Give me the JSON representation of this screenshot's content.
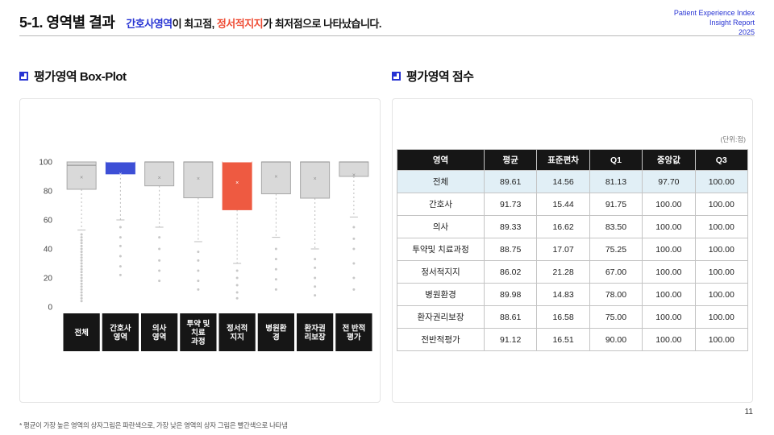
{
  "header": {
    "title": "5-1. 영역별 결과",
    "subtitle": [
      {
        "text": "간호사영역",
        "color": "#2733d3"
      },
      {
        "text": "이 최고점, ",
        "color": "#111111"
      },
      {
        "text": "정서적지지",
        "color": "#ee4b33"
      },
      {
        "text": "가 최저점으로 나타났습니다.",
        "color": "#111111"
      }
    ],
    "meta": [
      "Patient Experience Index",
      "Insight Report",
      "2025"
    ]
  },
  "sections": {
    "left_title": "평가영역 Box-Plot",
    "right_title": "평가영역 점수",
    "unit_label": "(단위:점)"
  },
  "palette": {
    "accent_blue": "#2733d3",
    "accent_red": "#ee4b33",
    "box_default": "#d9d9d9",
    "box_high": "#3d4fd6",
    "box_low": "#ee5a41",
    "table_header_bg": "#161616",
    "highlight_row_bg": "#e1eff6"
  },
  "table": {
    "headers": [
      "영역",
      "평균",
      "표준편차",
      "Q1",
      "중앙값",
      "Q3"
    ],
    "rows": [
      {
        "label": "전체",
        "values": [
          "89.61",
          "14.56",
          "81.13",
          "97.70",
          "100.00"
        ],
        "highlight": true
      },
      {
        "label": "간호사",
        "values": [
          "91.73",
          "15.44",
          "91.75",
          "100.00",
          "100.00"
        ],
        "highlight": false
      },
      {
        "label": "의사",
        "values": [
          "89.33",
          "16.62",
          "83.50",
          "100.00",
          "100.00"
        ],
        "highlight": false
      },
      {
        "label": "투약및 치료과정",
        "values": [
          "88.75",
          "17.07",
          "75.25",
          "100.00",
          "100.00"
        ],
        "highlight": false
      },
      {
        "label": "정서적지지",
        "values": [
          "86.02",
          "21.28",
          "67.00",
          "100.00",
          "100.00"
        ],
        "highlight": false
      },
      {
        "label": "병원환경",
        "values": [
          "89.98",
          "14.83",
          "78.00",
          "100.00",
          "100.00"
        ],
        "highlight": false
      },
      {
        "label": "환자권리보장",
        "values": [
          "88.61",
          "16.58",
          "75.00",
          "100.00",
          "100.00"
        ],
        "highlight": false
      },
      {
        "label": "전반적평가",
        "values": [
          "91.12",
          "16.51",
          "90.00",
          "100.00",
          "100.00"
        ],
        "highlight": false
      }
    ]
  },
  "chart_data": {
    "type": "boxplot",
    "title": "평가영역 Box-Plot",
    "ylim": [
      0,
      100
    ],
    "yticks": [
      100,
      80,
      60,
      40,
      20,
      0
    ],
    "grid": false,
    "series": [
      {
        "label_lines": [
          "전체"
        ],
        "mean": 89.61,
        "q1": 81.13,
        "median": 97.7,
        "q3": 100,
        "whisker_low": 53,
        "color": "#d9d9d9",
        "outliers": [
          50,
          48,
          46,
          44,
          42,
          40,
          38,
          36,
          34,
          32,
          30,
          28,
          26,
          24,
          22,
          20,
          18,
          16,
          14,
          12,
          10,
          8,
          6,
          4
        ]
      },
      {
        "label_lines": [
          "간호사",
          "영역"
        ],
        "mean": 91.73,
        "q1": 91.75,
        "median": 100,
        "q3": 100,
        "whisker_low": 60,
        "color": "#3d4fd6",
        "outliers": [
          55,
          48,
          42,
          35,
          28,
          22
        ]
      },
      {
        "label_lines": [
          "의사",
          "영역"
        ],
        "mean": 89.33,
        "q1": 83.5,
        "median": 100,
        "q3": 100,
        "whisker_low": 55,
        "color": "#d9d9d9",
        "outliers": [
          48,
          40,
          32,
          25,
          18
        ]
      },
      {
        "label_lines": [
          "투약 및",
          "치료",
          "과정"
        ],
        "mean": 88.75,
        "q1": 75.25,
        "median": 100,
        "q3": 100,
        "whisker_low": 45,
        "color": "#d9d9d9",
        "outliers": [
          38,
          32,
          25,
          18,
          12
        ]
      },
      {
        "label_lines": [
          "정서적",
          "지지"
        ],
        "mean": 86.02,
        "q1": 67.0,
        "median": 100,
        "q3": 100,
        "whisker_low": 30,
        "color": "#ee5a41",
        "outliers": [
          25,
          20,
          15,
          10,
          6
        ]
      },
      {
        "label_lines": [
          "병원환",
          "경"
        ],
        "mean": 89.98,
        "q1": 78.0,
        "median": 100,
        "q3": 100,
        "whisker_low": 48,
        "color": "#d9d9d9",
        "outliers": [
          40,
          33,
          26,
          19,
          12
        ]
      },
      {
        "label_lines": [
          "환자권",
          "리보장"
        ],
        "mean": 88.61,
        "q1": 75.0,
        "median": 100,
        "q3": 100,
        "whisker_low": 40,
        "color": "#d9d9d9",
        "outliers": [
          33,
          27,
          20,
          14,
          8
        ]
      },
      {
        "label_lines": [
          "전 반적",
          "평가"
        ],
        "mean": 91.12,
        "q1": 90.0,
        "median": 100,
        "q3": 100,
        "whisker_low": 62,
        "color": "#d9d9d9",
        "outliers": [
          55,
          47,
          40,
          30,
          20,
          12
        ]
      }
    ]
  },
  "footer": {
    "note": "* 평균이 가장 높은 영역의 상자그림은 파란색으로, 가장 낮은 영역의 상자 그림은 빨간색으로 나타냄",
    "page": "11"
  }
}
